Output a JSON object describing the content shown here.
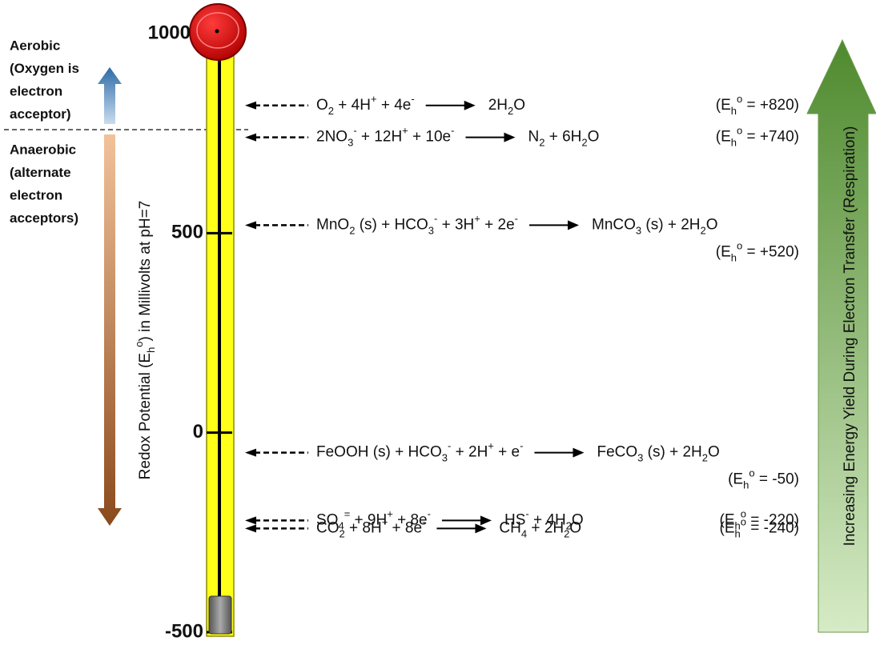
{
  "scale": {
    "range": [
      -500,
      1000
    ],
    "ticks": [
      1000,
      500,
      0,
      -500
    ]
  },
  "axis_label": [
    {
      "text": "Redox Potential (E"
    },
    {
      "text": "h",
      "pos": "sub"
    },
    {
      "text": "o",
      "pos": "sup"
    },
    {
      "text": ") in Millivolts at pH=7"
    }
  ],
  "aerobic": [
    "Aerobic",
    "(Oxygen is",
    "electron",
    "acceptor)"
  ],
  "anaerobic": [
    "Anaerobic",
    "(alternate",
    "electron",
    "acceptors)"
  ],
  "energy_label": "Increasing Energy Yield During Electron Transfer (Respiration)",
  "reactions": [
    {
      "reactants": [
        {
          "text": "O"
        },
        {
          "text": "2",
          "pos": "sub"
        },
        {
          "text": " + 4H"
        },
        {
          "text": "+",
          "pos": "sup"
        },
        {
          "text": " +  4e"
        },
        {
          "text": "-",
          "pos": "sup"
        }
      ],
      "products": [
        {
          "text": "2H"
        },
        {
          "text": "2",
          "pos": "sub"
        },
        {
          "text": "O"
        }
      ],
      "potential": [
        {
          "text": "(E"
        },
        {
          "text": "h",
          "pos": "sub"
        },
        {
          "text": "o",
          "pos": "sup"
        },
        {
          "text": " = "
        },
        {
          "value": 820,
          "label": "+820"
        },
        {
          "text": ")"
        }
      ]
    },
    {
      "reactants": [
        {
          "text": "2NO"
        },
        {
          "text": "3",
          "pos": "sub"
        },
        {
          "text": "-",
          "pos": "sup"
        },
        {
          "text": " + 12H"
        },
        {
          "text": "+",
          "pos": "sup"
        },
        {
          "text": " + 10e"
        },
        {
          "text": "-",
          "pos": "sup"
        }
      ],
      "products": [
        {
          "text": "N"
        },
        {
          "text": "2",
          "pos": "sub"
        },
        {
          "text": " + 6H"
        },
        {
          "text": "2",
          "pos": "sub"
        },
        {
          "text": "O"
        }
      ],
      "potential": [
        {
          "text": "(E"
        },
        {
          "text": "h",
          "pos": "sub"
        },
        {
          "text": "o",
          "pos": "sup"
        },
        {
          "text": " = "
        },
        {
          "value": 740,
          "label": "+740"
        },
        {
          "text": ")"
        }
      ]
    },
    {
      "reactants": [
        {
          "text": "MnO"
        },
        {
          "text": "2",
          "pos": "sub"
        },
        {
          "text": " (s) + HCO"
        },
        {
          "text": "3",
          "pos": "sub"
        },
        {
          "text": "-",
          "pos": "sup"
        },
        {
          "text": " + 3H"
        },
        {
          "text": "+",
          "pos": "sup"
        },
        {
          "text": " + 2e"
        },
        {
          "text": "-",
          "pos": "sup"
        }
      ],
      "products": [
        {
          "text": "MnCO"
        },
        {
          "text": "3",
          "pos": "sub"
        },
        {
          "text": " (s) + 2H"
        },
        {
          "text": "2",
          "pos": "sub"
        },
        {
          "text": "O"
        }
      ],
      "potential": [
        {
          "text": "(E"
        },
        {
          "text": "h",
          "pos": "sub"
        },
        {
          "text": "o",
          "pos": "sup"
        },
        {
          "text": " = "
        },
        {
          "value": 520,
          "label": "+520"
        },
        {
          "text": ")"
        }
      ]
    },
    {
      "reactants": [
        {
          "text": "FeOOH (s) + HCO"
        },
        {
          "text": "3",
          "pos": "sub"
        },
        {
          "text": "-",
          "pos": "sup"
        },
        {
          "text": " + 2H"
        },
        {
          "text": "+",
          "pos": "sup"
        },
        {
          "text": " + e"
        },
        {
          "text": "-",
          "pos": "sup"
        }
      ],
      "products": [
        {
          "text": "FeCO"
        },
        {
          "text": "3",
          "pos": "sub"
        },
        {
          "text": " (s) + 2H"
        },
        {
          "text": "2",
          "pos": "sub"
        },
        {
          "text": "O"
        }
      ],
      "potential": [
        {
          "text": "(E"
        },
        {
          "text": "h",
          "pos": "sub"
        },
        {
          "text": "o",
          "pos": "sup"
        },
        {
          "text": " = "
        },
        {
          "value": -50
        },
        {
          "text": ")"
        }
      ]
    },
    {
      "reactants": [
        {
          "text": "SO"
        },
        {
          "text": "4",
          "pos": "sub"
        },
        {
          "text": "=",
          "pos": "sup"
        },
        {
          "text": " + 9H"
        },
        {
          "text": "+",
          "pos": "sup"
        },
        {
          "text": " + 8e"
        },
        {
          "text": "-",
          "pos": "sup"
        }
      ],
      "products": [
        {
          "text": "HS"
        },
        {
          "text": "-",
          "pos": "sup"
        },
        {
          "text": " + 4H"
        },
        {
          "text": "2",
          "pos": "sub"
        },
        {
          "text": "O"
        }
      ],
      "potential": [
        {
          "text": "(E"
        },
        {
          "text": "h",
          "pos": "sub"
        },
        {
          "text": "o",
          "pos": "sup"
        },
        {
          "text": " = "
        },
        {
          "value": -220
        },
        {
          "text": ")"
        }
      ]
    },
    {
      "reactants": [
        {
          "text": "CO"
        },
        {
          "text": "2",
          "pos": "sub"
        },
        {
          "text": " + 8H"
        },
        {
          "text": "+",
          "pos": "sup"
        },
        {
          "text": " + 8e"
        },
        {
          "text": "-",
          "pos": "sup"
        }
      ],
      "products": [
        {
          "text": "CH"
        },
        {
          "text": "4",
          "pos": "sub"
        },
        {
          "text": " + 2H"
        },
        {
          "text": "2",
          "pos": "sub"
        },
        {
          "text": "O"
        }
      ],
      "potential": [
        {
          "text": "(E"
        },
        {
          "text": "h",
          "pos": "sub"
        },
        {
          "text": "o",
          "pos": "sup"
        },
        {
          "text": " = "
        },
        {
          "value": -240
        },
        {
          "text": ")"
        }
      ]
    }
  ]
}
